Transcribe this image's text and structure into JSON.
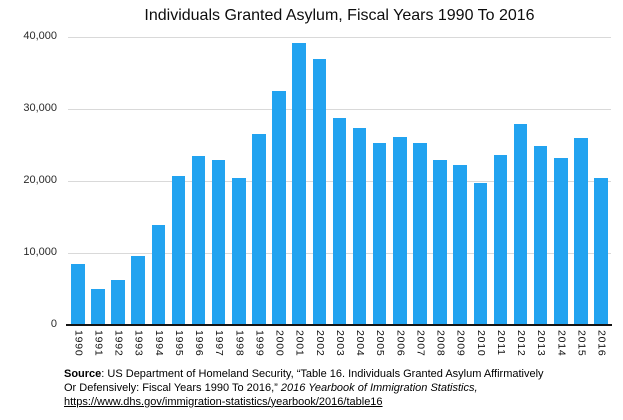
{
  "title": "Individuals Granted Asylum, Fiscal Years 1990 To 2016",
  "chart_data": {
    "type": "bar",
    "title": "Individuals Granted Asylum, Fiscal Years 1990 To 2016",
    "categories": [
      "1990",
      "1991",
      "1992",
      "1993",
      "1994",
      "1995",
      "1996",
      "1997",
      "1998",
      "1999",
      "2000",
      "2001",
      "2002",
      "2003",
      "2004",
      "2005",
      "2006",
      "2007",
      "2008",
      "2009",
      "2010",
      "2011",
      "2012",
      "2013",
      "2014",
      "2015",
      "2016"
    ],
    "values": [
      8472,
      5035,
      6307,
      9539,
      13827,
      20742,
      23534,
      22939,
      20469,
      26578,
      32476,
      39146,
      36924,
      28684,
      27321,
      25257,
      26113,
      25270,
      22930,
      22219,
      19700,
      23600,
      27900,
      24900,
      23200,
      26000,
      20455
    ],
    "xlabel": "",
    "ylabel": "",
    "ylim": [
      0,
      40000
    ],
    "yticks": [
      0,
      10000,
      20000,
      30000,
      40000
    ],
    "ytick_labels": [
      "0",
      "10,000",
      "20,000",
      "30,000",
      "40,000"
    ],
    "bar_color": "#22a3f0",
    "gridline_color": "#d9d9d9",
    "axis_color": "#151515",
    "grid": true,
    "legend": false
  },
  "source": {
    "label": "Source",
    "line1": ": US Department of Homeland Security, “Table 16. Individuals Granted Asylum Affirmatively",
    "line2_normal": "Or Defensively: Fiscal Years 1990 To 2016,”  ",
    "line2_italic": "2016 Yearbook of Immigration Statistics,",
    "link_text": "https://www.dhs.gov/immigration-statistics/yearbook/2016/table16"
  }
}
